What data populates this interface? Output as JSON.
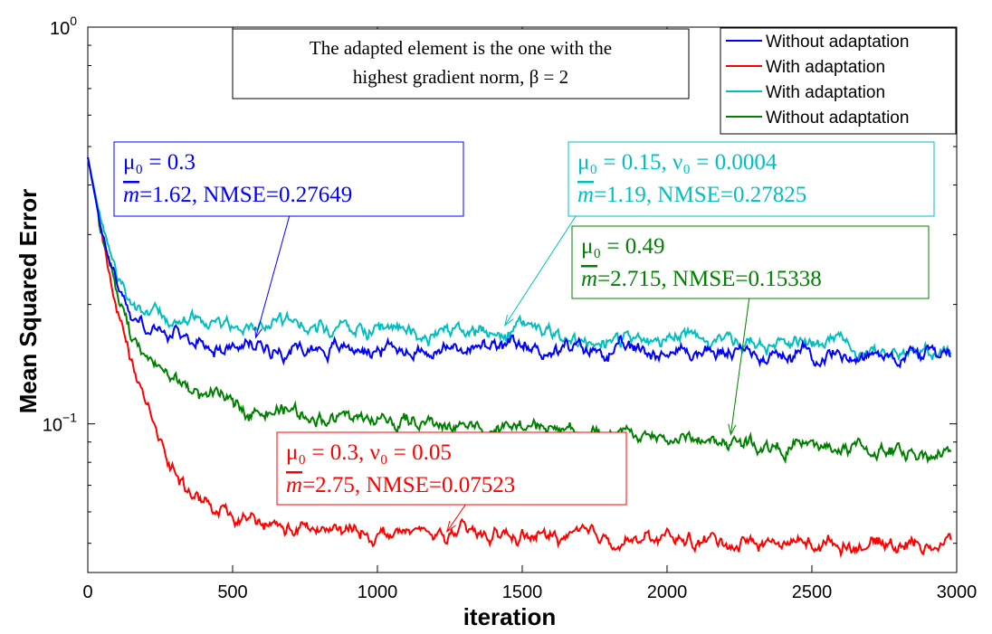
{
  "chart_data": {
    "type": "line",
    "title_box": {
      "line1": "The adapted element is the one with the",
      "line2": "highest gradient norm, β = 2"
    },
    "xlabel": "iteration",
    "ylabel": "Mean Squared Error",
    "xlim": [
      0,
      3000
    ],
    "ylim": [
      0.0422,
      1
    ],
    "yscale": "log",
    "x_ticks": [
      "0",
      "500",
      "1000",
      "1500",
      "2000",
      "2500",
      "3000"
    ],
    "y_ticks": [
      {
        "base": "10",
        "exp": "0",
        "value": 1
      },
      {
        "base": "10",
        "exp": "−1",
        "value": 0.1
      }
    ],
    "grid": false,
    "legend_position": "top-right",
    "series": [
      {
        "name": "Without adaptation",
        "color": "#0000ff",
        "x": [
          0,
          50,
          100,
          150,
          200,
          300,
          400,
          500,
          700,
          1000,
          1500,
          2000,
          2500,
          3000
        ],
        "y": [
          0.47,
          0.3,
          0.23,
          0.19,
          0.175,
          0.165,
          0.16,
          0.158,
          0.156,
          0.155,
          0.154,
          0.152,
          0.15,
          0.15
        ]
      },
      {
        "name": "With adaptation",
        "color": "#ff0000",
        "x": [
          0,
          50,
          100,
          150,
          200,
          300,
          400,
          500,
          700,
          1000,
          1500,
          2000,
          2500,
          3000
        ],
        "y": [
          0.47,
          0.3,
          0.2,
          0.14,
          0.11,
          0.075,
          0.062,
          0.057,
          0.054,
          0.053,
          0.052,
          0.051,
          0.05,
          0.05
        ]
      },
      {
        "name": "With adaptation",
        "color": "#00bfbf",
        "x": [
          0,
          50,
          100,
          150,
          200,
          300,
          400,
          500,
          700,
          1000,
          1500,
          2000,
          2500,
          3000
        ],
        "y": [
          0.47,
          0.31,
          0.24,
          0.205,
          0.19,
          0.183,
          0.18,
          0.178,
          0.176,
          0.172,
          0.168,
          0.163,
          0.157,
          0.152
        ]
      },
      {
        "name": "Without adaptation",
        "color": "#008000",
        "x": [
          0,
          50,
          100,
          150,
          200,
          300,
          400,
          500,
          700,
          1000,
          1500,
          2000,
          2500,
          3000
        ],
        "y": [
          0.47,
          0.3,
          0.21,
          0.165,
          0.145,
          0.128,
          0.118,
          0.112,
          0.107,
          0.102,
          0.097,
          0.092,
          0.087,
          0.084
        ]
      }
    ],
    "annotations": [
      {
        "color": "#0000ff",
        "line1": "μ₀ = 0.3",
        "line2_pre": "m",
        "line2": "=1.62, NMSE=0.27649",
        "target_x": 580,
        "target_y": 0.165
      },
      {
        "color": "#00bfbf",
        "line1": "μ₀ = 0.15, ν₀ = 0.0004",
        "line2_pre": "m",
        "line2": "=1.19, NMSE=0.27825",
        "target_x": 1440,
        "target_y": 0.177
      },
      {
        "color": "#008000",
        "line1": "μ₀ = 0.49",
        "line2_pre": "m",
        "line2": "=2.715, NMSE=0.15338",
        "target_x": 2220,
        "target_y": 0.094
      },
      {
        "color": "#ff0000",
        "line1": "μ₀ = 0.3, ν₀ = 0.05",
        "line2_pre": "m",
        "line2": "=2.75, NMSE=0.07523",
        "target_x": 1240,
        "target_y": 0.0535
      }
    ]
  }
}
